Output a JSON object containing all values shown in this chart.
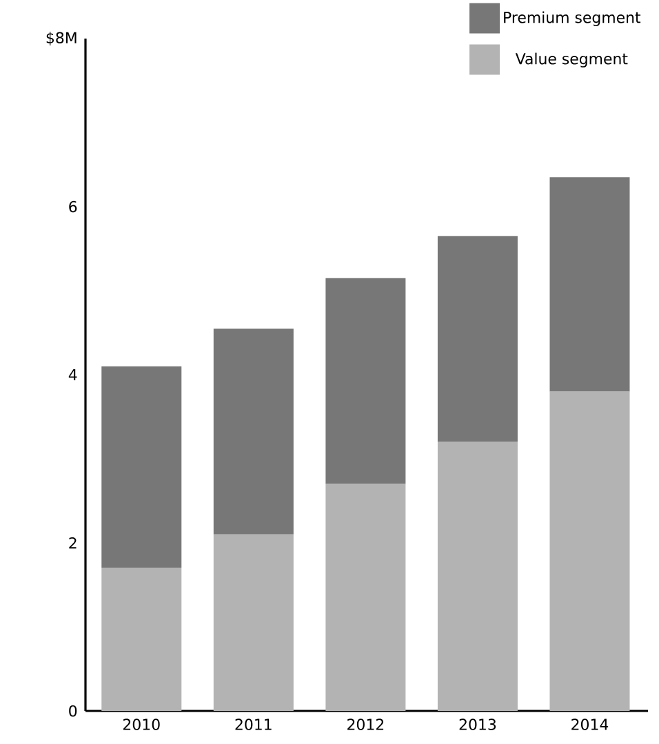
{
  "chart_data": {
    "type": "bar",
    "stacked": true,
    "legend": "top right",
    "categories": [
      "2010",
      "2011",
      "2012",
      "2013",
      "2014"
    ],
    "series": [
      {
        "name": "Value segment",
        "color": "#b3b3b3",
        "values": [
          1.7,
          2.1,
          2.7,
          3.2,
          3.8
        ]
      },
      {
        "name": "Premium segment",
        "color": "#777777",
        "values": [
          2.4,
          2.45,
          2.45,
          2.45,
          2.55
        ]
      }
    ],
    "ylim": [
      0,
      8
    ],
    "yticks": [
      0,
      2,
      4,
      6,
      {
        "value": 8,
        "label": "$8M"
      }
    ]
  }
}
